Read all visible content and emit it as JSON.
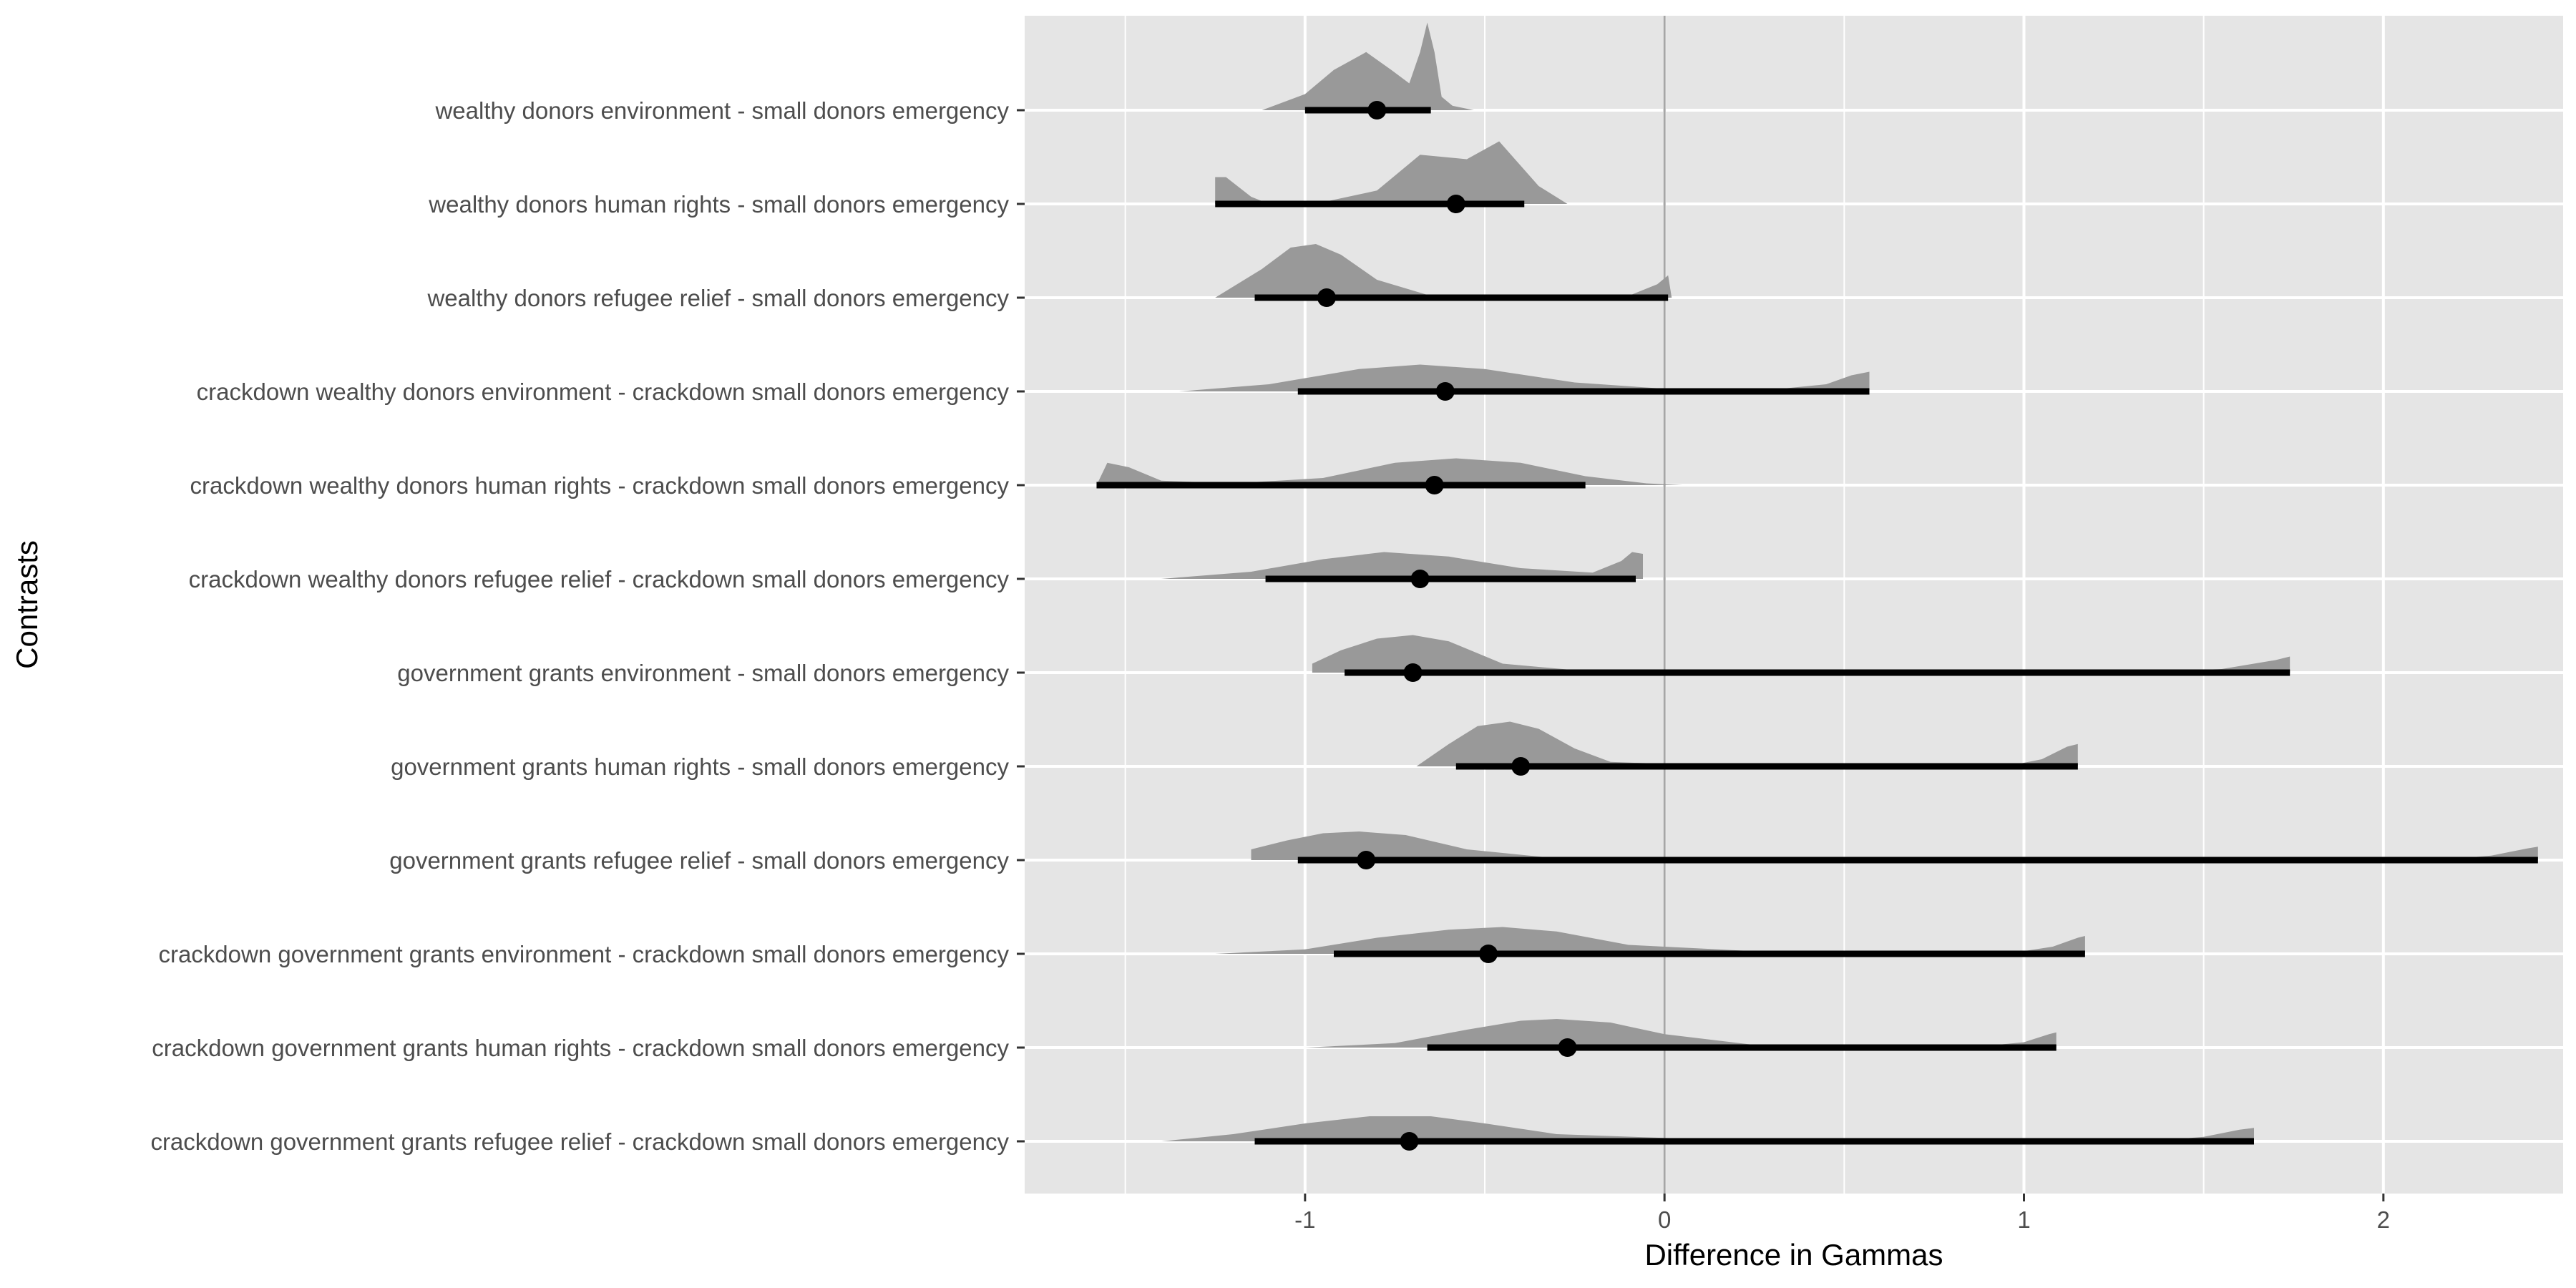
{
  "chart_data": {
    "type": "interval-density",
    "xlabel": "Difference in Gammas",
    "ylabel": "Contrasts",
    "xlim": [
      -1.78,
      2.5
    ],
    "x_ticks": [
      -1,
      0,
      1,
      2
    ],
    "x_tick_labels": [
      "-1",
      "0",
      "1",
      "2"
    ],
    "reference_line_x": 0,
    "grid": true,
    "colors": {
      "panel": "#e5e5e5",
      "grid": "#ffffff",
      "density": "#999999",
      "interval": "#000000",
      "reference_line": "#a6a6a6"
    },
    "contrasts": [
      {
        "label": "wealthy donors environment - small donors emergency",
        "point": -0.8,
        "lower": -1.0,
        "upper": -0.65,
        "density": {
          "x": [
            -1.12,
            -1.0,
            -0.92,
            -0.83,
            -0.76,
            -0.71,
            -0.68,
            -0.66,
            -0.64,
            -0.62,
            -0.59,
            -0.53
          ],
          "y": [
            0.0,
            0.18,
            0.45,
            0.65,
            0.45,
            0.3,
            0.65,
            0.98,
            0.65,
            0.15,
            0.05,
            0.0
          ]
        }
      },
      {
        "label": "wealthy donors human rights - small donors emergency",
        "point": -0.58,
        "lower": -1.25,
        "upper": -0.39,
        "density": {
          "x": [
            -1.25,
            -1.22,
            -1.15,
            -1.1,
            -0.95,
            -0.8,
            -0.68,
            -0.55,
            -0.46,
            -0.35,
            -0.27
          ],
          "y": [
            0.3,
            0.3,
            0.08,
            0.0,
            0.02,
            0.15,
            0.55,
            0.5,
            0.7,
            0.2,
            0.0
          ]
        }
      },
      {
        "label": "wealthy donors refugee relief - small donors emergency",
        "point": -0.94,
        "lower": -1.14,
        "upper": 0.01,
        "density": {
          "x": [
            -1.25,
            -1.12,
            -1.04,
            -0.97,
            -0.9,
            -0.8,
            -0.65,
            -0.4,
            -0.1,
            -0.02,
            0.01,
            0.02
          ],
          "y": [
            0.0,
            0.32,
            0.56,
            0.6,
            0.48,
            0.2,
            0.02,
            0.0,
            0.02,
            0.15,
            0.25,
            0.0
          ]
        }
      },
      {
        "label": "crackdown wealthy donors environment - crackdown small donors emergency",
        "point": -0.61,
        "lower": -1.02,
        "upper": 0.57,
        "density": {
          "x": [
            -1.35,
            -1.1,
            -0.85,
            -0.68,
            -0.5,
            -0.25,
            0.0,
            0.3,
            0.45,
            0.52,
            0.57,
            0.57
          ],
          "y": [
            0.0,
            0.08,
            0.25,
            0.3,
            0.25,
            0.1,
            0.03,
            0.02,
            0.08,
            0.18,
            0.22,
            0.0
          ]
        }
      },
      {
        "label": "crackdown wealthy donors human rights - crackdown small donors emergency",
        "point": -0.64,
        "lower": -1.58,
        "upper": -0.22,
        "density": {
          "x": [
            -1.58,
            -1.55,
            -1.49,
            -1.4,
            -1.2,
            -0.95,
            -0.75,
            -0.58,
            -0.4,
            -0.22,
            -0.05,
            0.05
          ],
          "y": [
            0.0,
            0.25,
            0.2,
            0.05,
            0.02,
            0.08,
            0.25,
            0.3,
            0.25,
            0.1,
            0.02,
            0.0
          ]
        }
      },
      {
        "label": "crackdown wealthy donors refugee relief - crackdown small donors emergency",
        "point": -0.68,
        "lower": -1.11,
        "upper": -0.08,
        "density": {
          "x": [
            -1.4,
            -1.15,
            -0.95,
            -0.78,
            -0.6,
            -0.4,
            -0.2,
            -0.12,
            -0.09,
            -0.06,
            -0.06
          ],
          "y": [
            0.0,
            0.08,
            0.22,
            0.3,
            0.25,
            0.12,
            0.07,
            0.2,
            0.3,
            0.28,
            0.0
          ]
        }
      },
      {
        "label": "government grants environment - small donors emergency",
        "point": -0.7,
        "lower": -0.89,
        "upper": 1.74,
        "density": {
          "x": [
            -0.98,
            -0.98,
            -0.9,
            -0.8,
            -0.7,
            -0.6,
            -0.45,
            -0.2,
            0.5,
            1.3,
            1.55,
            1.7,
            1.74,
            1.74
          ],
          "y": [
            0.0,
            0.1,
            0.25,
            0.38,
            0.42,
            0.35,
            0.1,
            0.01,
            0.0,
            0.0,
            0.04,
            0.14,
            0.18,
            0.0
          ]
        }
      },
      {
        "label": "government grants human rights - small donors emergency",
        "point": -0.4,
        "lower": -0.58,
        "upper": 1.15,
        "density": {
          "x": [
            -0.69,
            -0.6,
            -0.52,
            -0.43,
            -0.35,
            -0.25,
            -0.15,
            0.2,
            0.95,
            1.05,
            1.12,
            1.15,
            1.15
          ],
          "y": [
            0.0,
            0.25,
            0.45,
            0.5,
            0.42,
            0.2,
            0.05,
            0.0,
            0.0,
            0.08,
            0.22,
            0.25,
            0.0
          ]
        }
      },
      {
        "label": "government grants refugee relief - small donors emergency",
        "point": -0.83,
        "lower": -1.02,
        "upper": 2.43,
        "density": {
          "x": [
            -1.15,
            -1.15,
            -1.05,
            -0.95,
            -0.85,
            -0.72,
            -0.55,
            -0.3,
            1.0,
            2.15,
            2.3,
            2.4,
            2.43,
            2.43
          ],
          "y": [
            0.0,
            0.12,
            0.22,
            0.3,
            0.32,
            0.28,
            0.12,
            0.02,
            0.0,
            0.0,
            0.05,
            0.13,
            0.15,
            0.0
          ]
        }
      },
      {
        "label": "crackdown government grants environment - crackdown small donors emergency",
        "point": -0.49,
        "lower": -0.92,
        "upper": 1.17,
        "density": {
          "x": [
            -1.25,
            -1.0,
            -0.8,
            -0.6,
            -0.45,
            -0.3,
            -0.1,
            0.3,
            0.95,
            1.08,
            1.15,
            1.17,
            1.17
          ],
          "y": [
            0.0,
            0.05,
            0.18,
            0.27,
            0.3,
            0.25,
            0.1,
            0.02,
            0.0,
            0.08,
            0.18,
            0.2,
            0.0
          ]
        }
      },
      {
        "label": "crackdown government grants human rights - crackdown small donors emergency",
        "point": -0.27,
        "lower": -0.66,
        "upper": 1.09,
        "density": {
          "x": [
            -1.0,
            -0.75,
            -0.55,
            -0.4,
            -0.3,
            -0.15,
            0.0,
            0.25,
            0.85,
            1.0,
            1.07,
            1.09,
            1.09
          ],
          "y": [
            0.0,
            0.05,
            0.2,
            0.3,
            0.32,
            0.28,
            0.15,
            0.03,
            0.0,
            0.06,
            0.15,
            0.17,
            0.0
          ]
        }
      },
      {
        "label": "crackdown government grants refugee relief - crackdown small donors emergency",
        "point": -0.71,
        "lower": -1.14,
        "upper": 1.64,
        "density": {
          "x": [
            -1.4,
            -1.2,
            -1.0,
            -0.82,
            -0.65,
            -0.5,
            -0.3,
            0.2,
            1.35,
            1.5,
            1.6,
            1.64,
            1.64
          ],
          "y": [
            0.0,
            0.08,
            0.2,
            0.28,
            0.28,
            0.2,
            0.08,
            0.01,
            0.0,
            0.05,
            0.13,
            0.15,
            0.0
          ]
        }
      }
    ]
  }
}
